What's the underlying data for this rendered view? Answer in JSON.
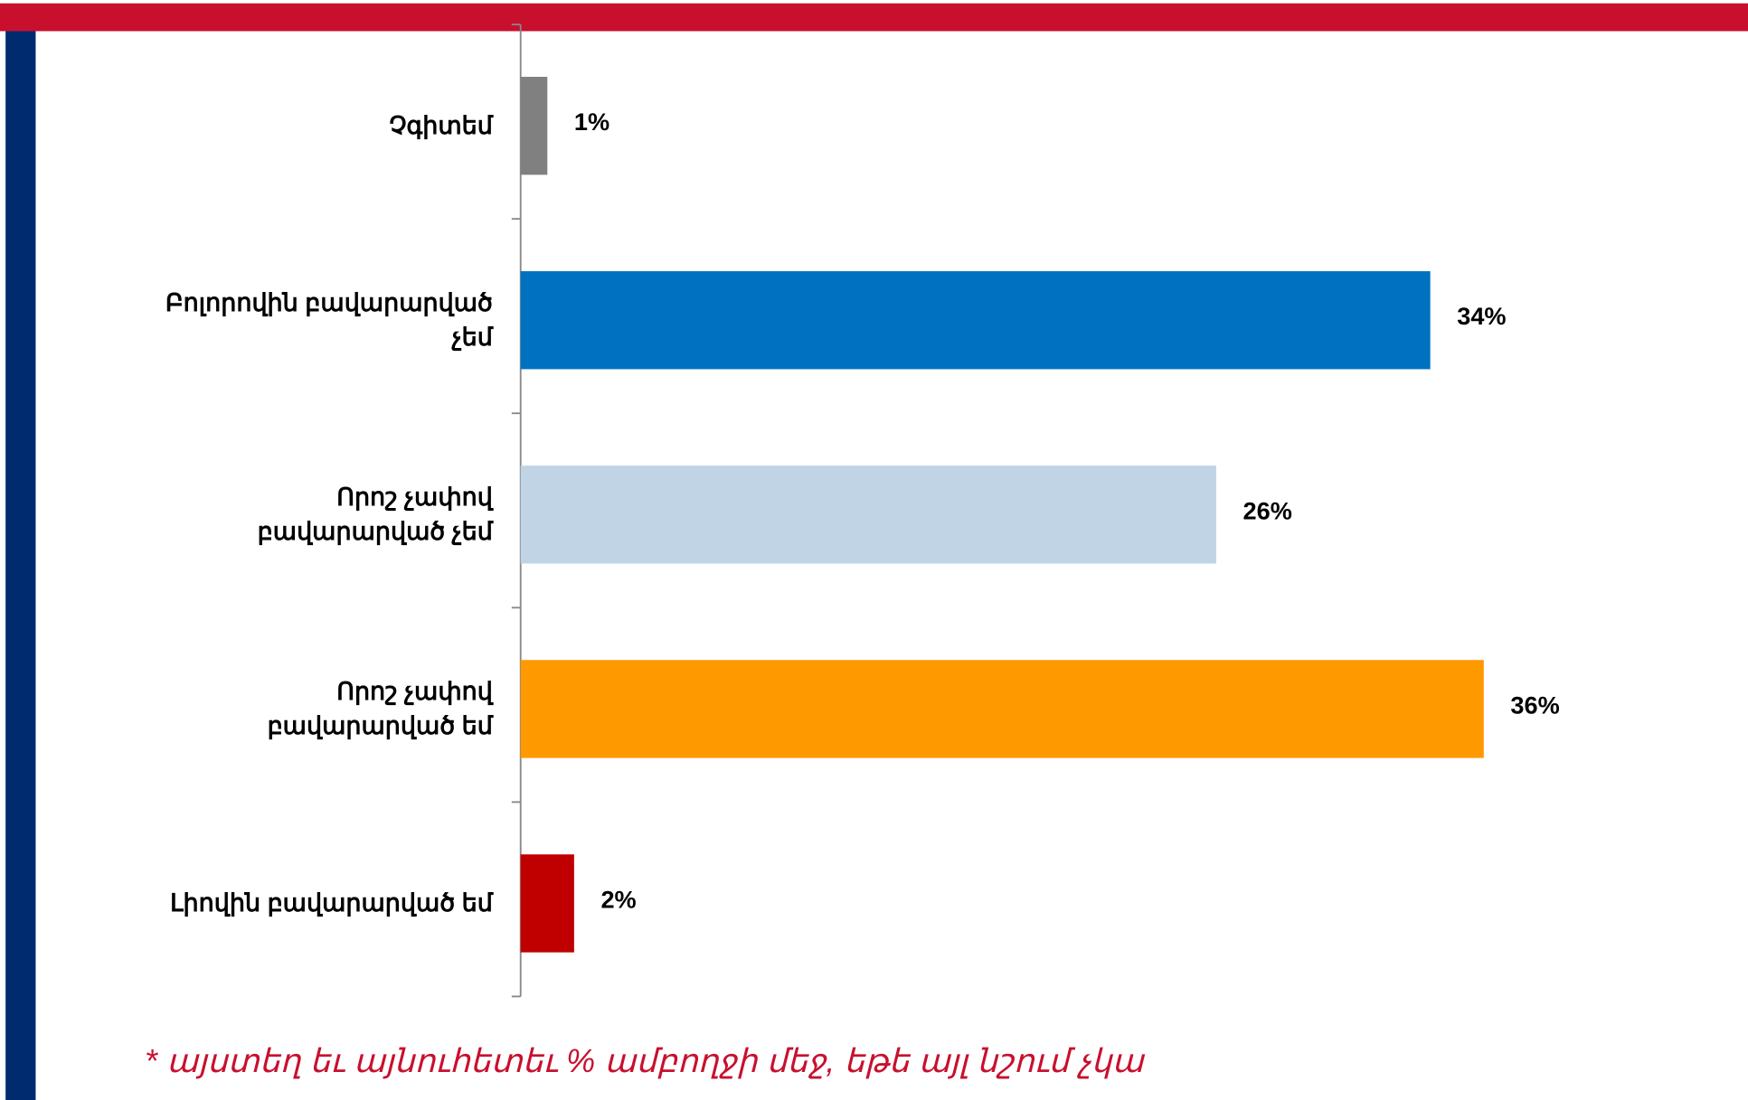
{
  "chart_data": {
    "type": "barh",
    "categories": [
      "Չգիտեմ",
      "Բոլորովին բավարարված չեմ",
      "Որոշ չափով բավարարված չեմ",
      "Որոշ չափով բավարարված եմ",
      "Լիովին բավարարված եմ"
    ],
    "values": [
      1,
      34,
      26,
      36,
      2
    ],
    "value_labels": [
      "1%",
      "34%",
      "26%",
      "36%",
      "2%"
    ],
    "colors": [
      "#808080",
      "#0070c0",
      "#c0d4e6",
      "#ff9900",
      "#c00000"
    ],
    "xlim": [
      0,
      40
    ],
    "footnote": "*  այստեղ եւ այնուհետեւ % ամբողջի մեջ, եթե այլ նշում չկա"
  }
}
